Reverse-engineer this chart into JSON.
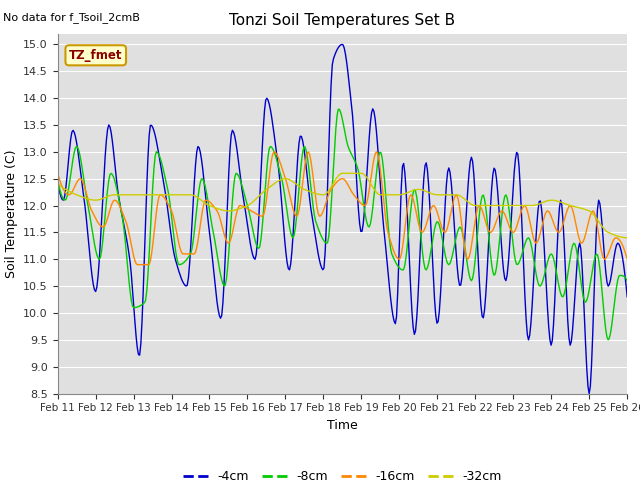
{
  "title": "Tonzi Soil Temperatures Set B",
  "no_data_text": "No data for f_Tsoil_2cmB",
  "box_label": "TZ_fmet",
  "xlabel": "Time",
  "ylabel": "Soil Temperature (C)",
  "ylim": [
    8.5,
    15.2
  ],
  "yticks": [
    8.5,
    9.0,
    9.5,
    10.0,
    10.5,
    11.0,
    11.5,
    12.0,
    12.5,
    13.0,
    13.5,
    14.0,
    14.5,
    15.0
  ],
  "x_labels": [
    "Feb 11",
    "Feb 12",
    "Feb 13",
    "Feb 14",
    "Feb 15",
    "Feb 16",
    "Feb 17",
    "Feb 18",
    "Feb 19",
    "Feb 20",
    "Feb 21",
    "Feb 22",
    "Feb 23",
    "Feb 24",
    "Feb 25",
    "Feb 26"
  ],
  "colors": {
    "-4cm": "#0000cc",
    "-8cm": "#00cc00",
    "-16cm": "#ff8800",
    "-32cm": "#cccc00"
  },
  "legend_labels": [
    "-4cm",
    "-8cm",
    "-16cm",
    "-32cm"
  ],
  "bg_color": "#e0e0e0",
  "line_width": 1.0,
  "days": 15,
  "n_points": 480
}
